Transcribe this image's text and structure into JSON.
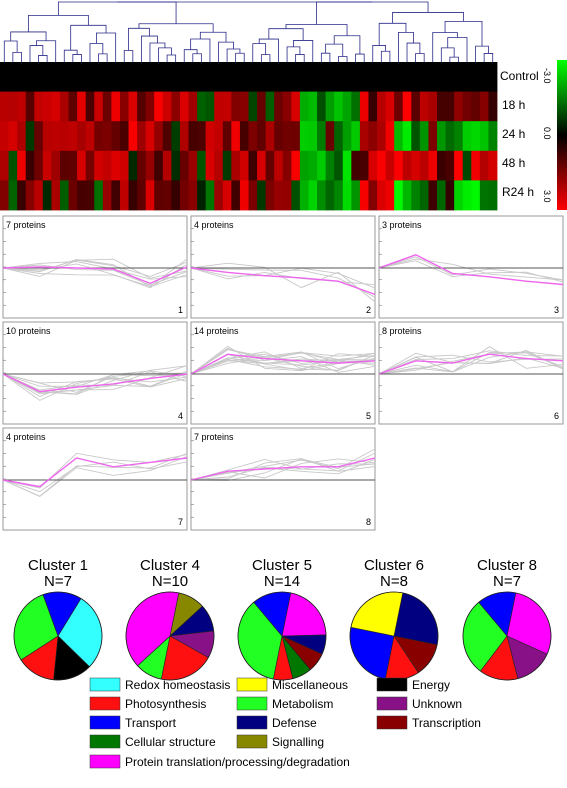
{
  "chart_data": [
    {
      "type": "heatmap",
      "rows": [
        "Control",
        "18 h",
        "24 h",
        "48 h",
        "R24 h"
      ],
      "scale_labels": [
        "-3.0",
        "0.0",
        "3.0"
      ],
      "colors": {
        "low": "#00ff00",
        "mid": "#000000",
        "high": "#ff0000"
      },
      "dendrogram_color": "#2a2a8a"
    },
    {
      "type": "line",
      "colors": {
        "mean": "#ee66ee",
        "member": "#c8c8c8",
        "baseline": "#555555"
      },
      "panels": [
        {
          "count_label": "7 proteins",
          "index": "1",
          "mean": [
            0.0,
            0.05,
            0.0,
            -0.05,
            -0.7,
            0.05
          ]
        },
        {
          "count_label": "4 proteins",
          "index": "2",
          "mean": [
            0.0,
            -0.2,
            -0.35,
            -0.45,
            -0.6,
            -1.2
          ]
        },
        {
          "count_label": "3 proteins",
          "index": "3",
          "mean": [
            0.0,
            0.6,
            -0.25,
            -0.4,
            -0.6,
            -0.75
          ]
        },
        {
          "count_label": "10 proteins",
          "index": "4",
          "mean": [
            0.0,
            -0.8,
            -0.6,
            -0.45,
            -0.2,
            0.0
          ]
        },
        {
          "count_label": "14 proteins",
          "index": "5",
          "mean": [
            0.0,
            0.9,
            0.7,
            0.6,
            0.5,
            0.6
          ]
        },
        {
          "count_label": "8 proteins",
          "index": "6",
          "mean": [
            0.0,
            0.6,
            0.5,
            0.9,
            0.7,
            0.6
          ]
        },
        {
          "count_label": "4 proteins",
          "index": "7",
          "mean": [
            0.0,
            -0.3,
            1.0,
            0.6,
            0.8,
            1.0
          ]
        },
        {
          "count_label": "7 proteins",
          "index": "8",
          "mean": [
            0.0,
            0.4,
            0.5,
            0.6,
            0.6,
            1.0
          ]
        }
      ]
    },
    {
      "type": "pie",
      "charts": [
        {
          "title": "Cluster 1",
          "n": "N=7",
          "slices": [
            {
              "cat": "Redox homeostasis",
              "v": 2
            },
            {
              "cat": "Energy",
              "v": 1
            },
            {
              "cat": "Photosynthesis",
              "v": 1
            },
            {
              "cat": "Metabolism",
              "v": 2
            },
            {
              "cat": "Transport",
              "v": 1
            }
          ]
        },
        {
          "title": "Cluster 4",
          "n": "N=10",
          "slices": [
            {
              "cat": "Signalling",
              "v": 1
            },
            {
              "cat": "Defense",
              "v": 1
            },
            {
              "cat": "Unknown",
              "v": 1
            },
            {
              "cat": "Photosynthesis",
              "v": 2
            },
            {
              "cat": "Metabolism",
              "v": 1
            },
            {
              "cat": "Protein translation/processing/degradation",
              "v": 4
            }
          ]
        },
        {
          "title": "Cluster 5",
          "n": "N=14",
          "slices": [
            {
              "cat": "Protein translation/processing/degradation",
              "v": 3
            },
            {
              "cat": "Defense",
              "v": 1
            },
            {
              "cat": "Transcription",
              "v": 1
            },
            {
              "cat": "Cellular structure",
              "v": 1
            },
            {
              "cat": "Photosynthesis",
              "v": 1
            },
            {
              "cat": "Metabolism",
              "v": 5
            },
            {
              "cat": "Transport",
              "v": 2
            }
          ]
        },
        {
          "title": "Cluster 6",
          "n": "N=8",
          "slices": [
            {
              "cat": "Defense",
              "v": 2
            },
            {
              "cat": "Transcription",
              "v": 1
            },
            {
              "cat": "Photosynthesis",
              "v": 1
            },
            {
              "cat": "Transport",
              "v": 2
            },
            {
              "cat": "Miscellaneous",
              "v": 2
            }
          ]
        },
        {
          "title": "Cluster 8",
          "n": "N=7",
          "slices": [
            {
              "cat": "Protein translation/processing/degradation",
              "v": 2
            },
            {
              "cat": "Unknown",
              "v": 1
            },
            {
              "cat": "Photosynthesis",
              "v": 1
            },
            {
              "cat": "Metabolism",
              "v": 2
            },
            {
              "cat": "Transport",
              "v": 1
            }
          ]
        }
      ]
    }
  ],
  "legend": [
    {
      "label": "Redox homeostasis",
      "color": "#33ffff"
    },
    {
      "label": "Miscellaneous",
      "color": "#ffff00"
    },
    {
      "label": "Energy",
      "color": "#000000"
    },
    {
      "label": "Photosynthesis",
      "color": "#ff1010"
    },
    {
      "label": "Metabolism",
      "color": "#22ff22"
    },
    {
      "label": "Unknown",
      "color": "#881188"
    },
    {
      "label": "Transport",
      "color": "#0000ff"
    },
    {
      "label": "Defense",
      "color": "#000080"
    },
    {
      "label": "Transcription",
      "color": "#880000"
    },
    {
      "label": "Cellular structure",
      "color": "#007700"
    },
    {
      "label": "Signalling",
      "color": "#888800"
    },
    {
      "label": "Protein translation/processing/degradation",
      "color": "#ff00ff"
    }
  ]
}
